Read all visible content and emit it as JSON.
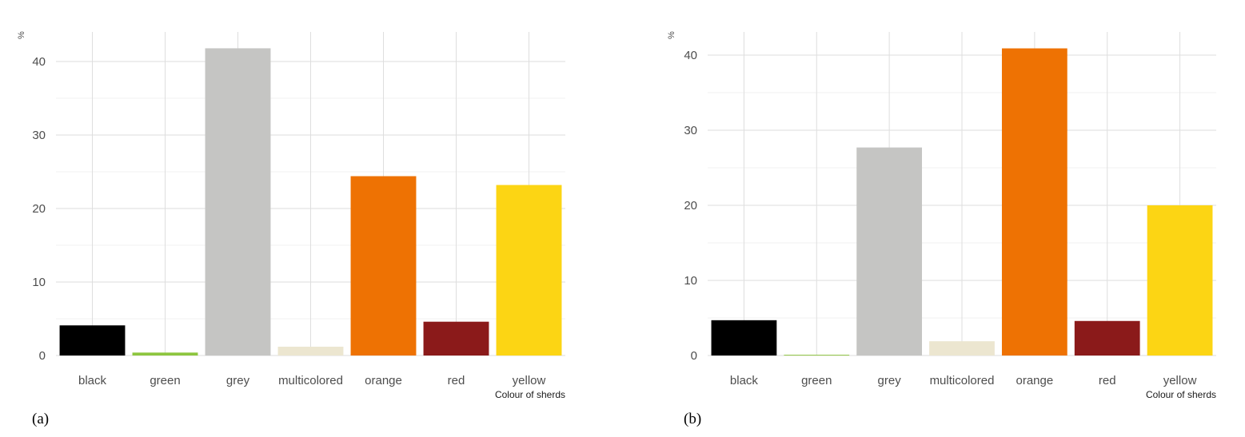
{
  "chart_data": [
    {
      "type": "bar",
      "panel_label": "(a)",
      "categories": [
        "black",
        "green",
        "grey",
        "multicolored",
        "orange",
        "red",
        "yellow"
      ],
      "values": [
        4.1,
        0.4,
        41.8,
        1.2,
        24.4,
        4.6,
        23.2
      ],
      "colors": [
        "#000000",
        "#8dc63f",
        "#c5c5c3",
        "#ece6d0",
        "#ee7203",
        "#8b1a1a",
        "#fcd514"
      ],
      "ylabel": "%",
      "xlabel": "Colour of sherds",
      "y_ticks": [
        0,
        10,
        20,
        30,
        40
      ],
      "ylim": [
        0,
        43
      ],
      "grid": true,
      "legend": "none"
    },
    {
      "type": "bar",
      "panel_label": "(b)",
      "categories": [
        "black",
        "green",
        "grey",
        "multicolored",
        "orange",
        "red",
        "yellow"
      ],
      "values": [
        4.7,
        0.1,
        27.7,
        1.9,
        40.9,
        4.6,
        20.0
      ],
      "colors": [
        "#000000",
        "#8dc63f",
        "#c5c5c3",
        "#ece6d0",
        "#ee7203",
        "#8b1a1a",
        "#fcd514"
      ],
      "ylabel": "%",
      "xlabel": "Colour of sherds",
      "y_ticks": [
        0,
        10,
        20,
        30,
        40
      ],
      "ylim": [
        0,
        43
      ],
      "grid": true,
      "legend": "none"
    }
  ]
}
